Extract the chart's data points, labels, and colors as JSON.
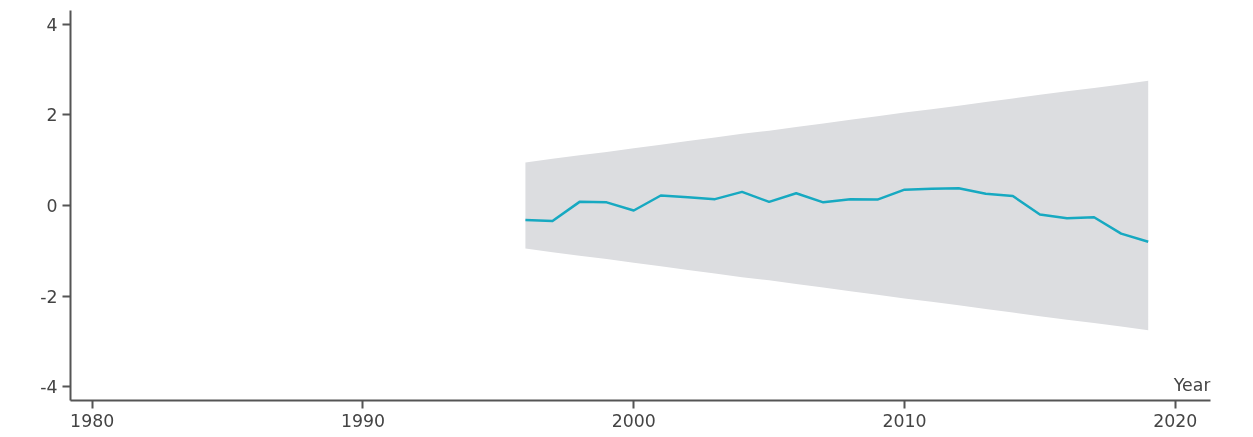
{
  "chart_data": {
    "type": "line",
    "xlabel": "Year",
    "x": [
      1996,
      1997,
      1998,
      1999,
      2000,
      2001,
      2002,
      2003,
      2004,
      2005,
      2006,
      2007,
      2008,
      2009,
      2010,
      2011,
      2012,
      2013,
      2014,
      2015,
      2016,
      2017,
      2018,
      2019
    ],
    "series": [
      {
        "color": "#17a9c1",
        "values": [
          -0.32,
          -0.34,
          0.08,
          0.07,
          -0.11,
          0.22,
          0.18,
          0.14,
          0.3,
          0.08,
          0.27,
          0.07,
          0.14,
          0.13,
          0.35,
          0.37,
          0.38,
          0.26,
          0.21,
          -0.2,
          -0.28,
          -0.26,
          -0.62,
          -0.8
        ],
        "lower": [
          -0.95,
          -1.03,
          -1.11,
          -1.18,
          -1.26,
          -1.34,
          -1.42,
          -1.5,
          -1.58,
          -1.65,
          -1.73,
          -1.81,
          -1.89,
          -1.97,
          -2.05,
          -2.12,
          -2.2,
          -2.28,
          -2.36,
          -2.44,
          -2.52,
          -2.59,
          -2.67,
          -2.75
        ],
        "upper": [
          0.95,
          1.03,
          1.11,
          1.18,
          1.26,
          1.34,
          1.42,
          1.5,
          1.58,
          1.65,
          1.73,
          1.81,
          1.89,
          1.97,
          2.05,
          2.12,
          2.2,
          2.28,
          2.36,
          2.44,
          2.52,
          2.59,
          2.67,
          2.75
        ]
      }
    ],
    "xlim": [
      1979.2,
      2021.3
    ],
    "ylim": [
      -4.3,
      4.3
    ],
    "xticks": [
      1980,
      1990,
      2000,
      2010,
      2020
    ],
    "yticks": [
      -4,
      -2,
      0,
      2,
      4
    ],
    "grid": false,
    "marker": "none",
    "line_style": "solid"
  }
}
